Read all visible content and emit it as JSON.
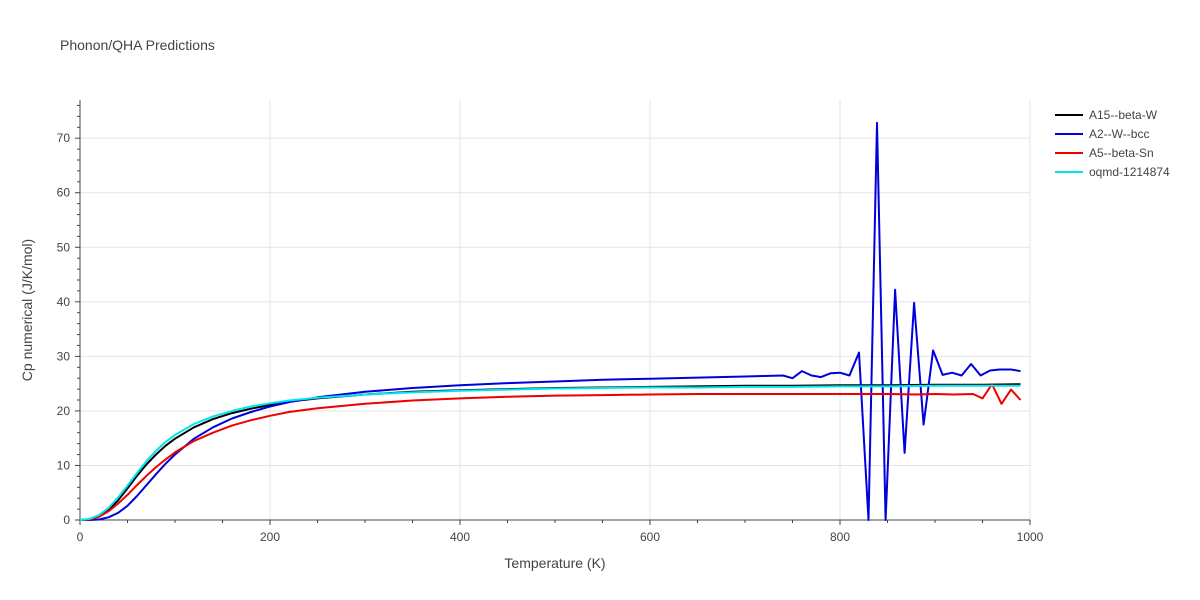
{
  "chart_data": {
    "type": "line",
    "title": "Phonon/QHA Predictions",
    "xlabel": "Temperature (K)",
    "ylabel": "Cp numerical (J/K/mol)",
    "xlim": [
      0,
      1000
    ],
    "ylim": [
      0,
      77
    ],
    "x_ticks": [
      0,
      200,
      400,
      600,
      800,
      1000
    ],
    "y_ticks": [
      0,
      10,
      20,
      30,
      40,
      50,
      60,
      70
    ],
    "grid": true,
    "legend_position": "top-right",
    "series": [
      {
        "name": "A15--beta-W",
        "color": "#000000",
        "points": [
          [
            0,
            0
          ],
          [
            10,
            0.1
          ],
          [
            20,
            0.6
          ],
          [
            30,
            1.8
          ],
          [
            40,
            3.6
          ],
          [
            50,
            5.8
          ],
          [
            60,
            8.1
          ],
          [
            70,
            10.2
          ],
          [
            80,
            12.0
          ],
          [
            90,
            13.6
          ],
          [
            100,
            14.9
          ],
          [
            120,
            17.0
          ],
          [
            140,
            18.5
          ],
          [
            160,
            19.6
          ],
          [
            180,
            20.4
          ],
          [
            200,
            21.1
          ],
          [
            220,
            21.7
          ],
          [
            250,
            22.3
          ],
          [
            300,
            23.0
          ],
          [
            350,
            23.5
          ],
          [
            400,
            23.8
          ],
          [
            450,
            24.0
          ],
          [
            500,
            24.2
          ],
          [
            550,
            24.3
          ],
          [
            600,
            24.4
          ],
          [
            650,
            24.5
          ],
          [
            700,
            24.6
          ],
          [
            750,
            24.6
          ],
          [
            800,
            24.7
          ],
          [
            850,
            24.7
          ],
          [
            900,
            24.8
          ],
          [
            950,
            24.8
          ],
          [
            990,
            24.9
          ]
        ]
      },
      {
        "name": "A2--W--bcc",
        "color": "#0000dd",
        "points": [
          [
            0,
            0
          ],
          [
            10,
            0
          ],
          [
            20,
            0.1
          ],
          [
            30,
            0.5
          ],
          [
            40,
            1.3
          ],
          [
            50,
            2.6
          ],
          [
            60,
            4.4
          ],
          [
            70,
            6.4
          ],
          [
            80,
            8.4
          ],
          [
            90,
            10.3
          ],
          [
            100,
            12.0
          ],
          [
            120,
            14.9
          ],
          [
            140,
            17.0
          ],
          [
            160,
            18.6
          ],
          [
            180,
            19.8
          ],
          [
            200,
            20.8
          ],
          [
            220,
            21.6
          ],
          [
            250,
            22.5
          ],
          [
            300,
            23.5
          ],
          [
            350,
            24.2
          ],
          [
            400,
            24.7
          ],
          [
            450,
            25.1
          ],
          [
            500,
            25.4
          ],
          [
            550,
            25.7
          ],
          [
            600,
            25.9
          ],
          [
            650,
            26.1
          ],
          [
            700,
            26.3
          ],
          [
            720,
            26.4
          ],
          [
            740,
            26.5
          ],
          [
            750,
            26.0
          ],
          [
            760,
            27.3
          ],
          [
            770,
            26.5
          ],
          [
            780,
            26.2
          ],
          [
            790,
            26.9
          ],
          [
            800,
            27.0
          ],
          [
            810,
            26.5
          ],
          [
            820,
            30.7
          ],
          [
            830,
            0.0
          ],
          [
            839,
            72.8
          ],
          [
            848,
            0.0
          ],
          [
            858,
            42.2
          ],
          [
            868,
            12.3
          ],
          [
            878,
            39.8
          ],
          [
            888,
            17.5
          ],
          [
            898,
            31.1
          ],
          [
            908,
            26.6
          ],
          [
            918,
            27.0
          ],
          [
            928,
            26.5
          ],
          [
            938,
            28.6
          ],
          [
            948,
            26.5
          ],
          [
            958,
            27.4
          ],
          [
            968,
            27.6
          ],
          [
            980,
            27.6
          ],
          [
            990,
            27.3
          ]
        ]
      },
      {
        "name": "A5--beta-Sn",
        "color": "#ee0000",
        "points": [
          [
            0,
            0
          ],
          [
            10,
            0.1
          ],
          [
            20,
            0.6
          ],
          [
            30,
            1.6
          ],
          [
            40,
            3.0
          ],
          [
            50,
            4.6
          ],
          [
            60,
            6.4
          ],
          [
            70,
            8.1
          ],
          [
            80,
            9.7
          ],
          [
            90,
            11.1
          ],
          [
            100,
            12.4
          ],
          [
            120,
            14.5
          ],
          [
            140,
            16.0
          ],
          [
            160,
            17.3
          ],
          [
            180,
            18.3
          ],
          [
            200,
            19.1
          ],
          [
            220,
            19.8
          ],
          [
            250,
            20.5
          ],
          [
            300,
            21.3
          ],
          [
            350,
            21.9
          ],
          [
            400,
            22.3
          ],
          [
            450,
            22.6
          ],
          [
            500,
            22.8
          ],
          [
            550,
            22.9
          ],
          [
            600,
            23.0
          ],
          [
            650,
            23.1
          ],
          [
            700,
            23.1
          ],
          [
            750,
            23.1
          ],
          [
            800,
            23.1
          ],
          [
            850,
            23.1
          ],
          [
            880,
            23.0
          ],
          [
            900,
            23.1
          ],
          [
            920,
            23.0
          ],
          [
            940,
            23.1
          ],
          [
            950,
            22.3
          ],
          [
            960,
            24.9
          ],
          [
            970,
            21.3
          ],
          [
            980,
            23.9
          ],
          [
            990,
            22.0
          ]
        ]
      },
      {
        "name": "oqmd-1214874",
        "color": "#00e5ee",
        "points": [
          [
            0,
            0
          ],
          [
            10,
            0.2
          ],
          [
            20,
            0.9
          ],
          [
            30,
            2.2
          ],
          [
            40,
            4.1
          ],
          [
            50,
            6.3
          ],
          [
            60,
            8.6
          ],
          [
            70,
            10.8
          ],
          [
            80,
            12.7
          ],
          [
            90,
            14.3
          ],
          [
            100,
            15.6
          ],
          [
            120,
            17.6
          ],
          [
            140,
            19.0
          ],
          [
            160,
            20.0
          ],
          [
            180,
            20.8
          ],
          [
            200,
            21.4
          ],
          [
            220,
            21.9
          ],
          [
            250,
            22.4
          ],
          [
            300,
            23.0
          ],
          [
            350,
            23.4
          ],
          [
            400,
            23.7
          ],
          [
            450,
            23.9
          ],
          [
            500,
            24.1
          ],
          [
            550,
            24.2
          ],
          [
            600,
            24.3
          ],
          [
            650,
            24.3
          ],
          [
            700,
            24.4
          ],
          [
            750,
            24.4
          ],
          [
            800,
            24.5
          ],
          [
            850,
            24.5
          ],
          [
            900,
            24.6
          ],
          [
            950,
            24.6
          ],
          [
            990,
            24.6
          ]
        ]
      }
    ]
  }
}
